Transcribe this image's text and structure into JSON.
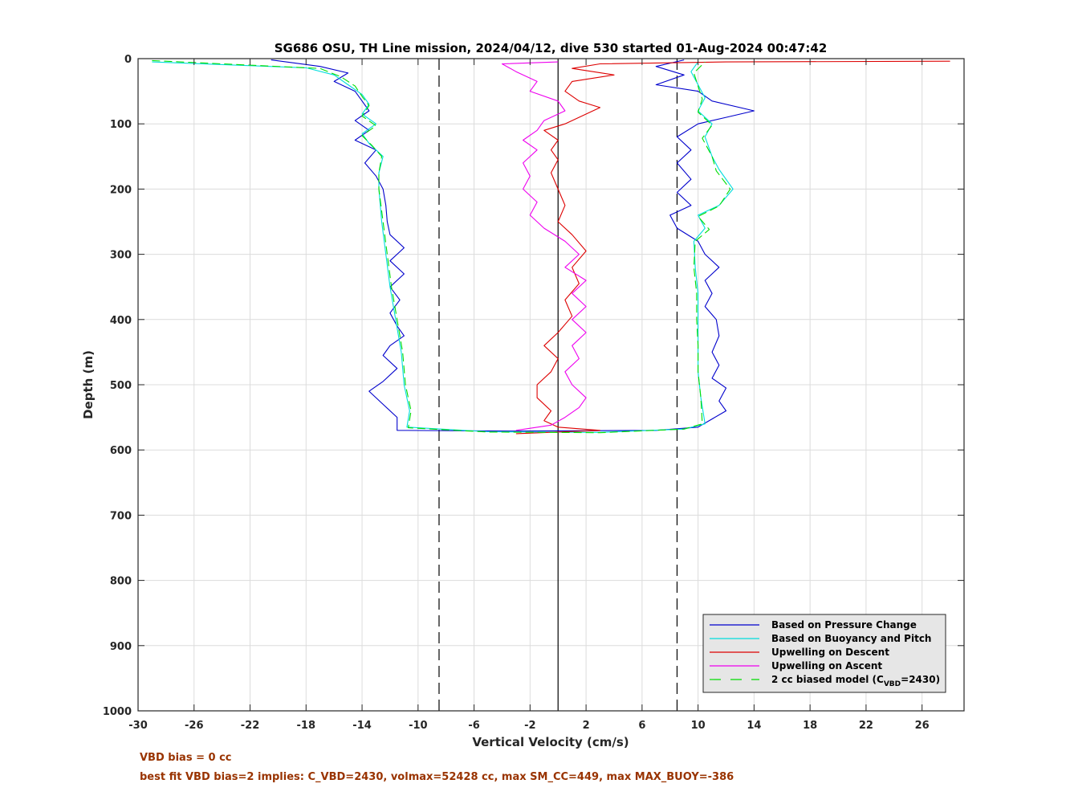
{
  "chart_data": {
    "type": "line",
    "title": "SG686 OSU, TH Line mission, 2024/04/12, dive 530 started 01-Aug-2024 00:47:42",
    "xlabel": "Vertical Velocity (cm/s)",
    "ylabel": "Depth (m)",
    "xlim": [
      -30,
      29
    ],
    "ylim": [
      1000,
      0
    ],
    "y_reversed": true,
    "grid": true,
    "legend_position": "bottom-right",
    "xticks": [
      -30,
      -26,
      -22,
      -18,
      -14,
      -10,
      -6,
      -2,
      2,
      6,
      10,
      14,
      18,
      22,
      26
    ],
    "yticks": [
      0,
      100,
      200,
      300,
      400,
      500,
      600,
      700,
      800,
      900,
      1000
    ],
    "vlines": [
      {
        "x": -8.5,
        "style": "dashed",
        "color": "#000000"
      },
      {
        "x": 0,
        "style": "solid",
        "color": "#000000"
      },
      {
        "x": 8.5,
        "style": "dashed",
        "color": "#000000"
      }
    ],
    "series": [
      {
        "name": "Based on Pressure Change",
        "color": "#0000cc",
        "style": "solid",
        "points": [
          [
            -20.5,
            2
          ],
          [
            -17,
            12
          ],
          [
            -15,
            22
          ],
          [
            -16,
            35
          ],
          [
            -14.5,
            50
          ],
          [
            -14,
            65
          ],
          [
            -13.5,
            80
          ],
          [
            -14.5,
            95
          ],
          [
            -13.5,
            110
          ],
          [
            -14.5,
            125
          ],
          [
            -13,
            140
          ],
          [
            -13.8,
            160
          ],
          [
            -13,
            180
          ],
          [
            -12.5,
            200
          ],
          [
            -12.3,
            225
          ],
          [
            -12.2,
            250
          ],
          [
            -12,
            270
          ],
          [
            -11,
            290
          ],
          [
            -12,
            310
          ],
          [
            -11,
            330
          ],
          [
            -12,
            350
          ],
          [
            -11.3,
            370
          ],
          [
            -12,
            390
          ],
          [
            -11.5,
            410
          ],
          [
            -11,
            425
          ],
          [
            -12,
            440
          ],
          [
            -12.5,
            455
          ],
          [
            -11.5,
            475
          ],
          [
            -12.5,
            495
          ],
          [
            -13.5,
            510
          ],
          [
            -12.5,
            530
          ],
          [
            -11.5,
            550
          ],
          [
            -11.5,
            570
          ],
          [
            -3,
            571
          ],
          [
            7,
            570
          ],
          [
            10,
            565
          ],
          [
            12,
            540
          ],
          [
            11.5,
            525
          ],
          [
            12,
            505
          ],
          [
            11,
            490
          ],
          [
            11.5,
            470
          ],
          [
            11,
            450
          ],
          [
            11.5,
            425
          ],
          [
            11.3,
            400
          ],
          [
            10.5,
            380
          ],
          [
            11,
            360
          ],
          [
            10.5,
            340
          ],
          [
            11.5,
            320
          ],
          [
            10.5,
            300
          ],
          [
            10,
            280
          ],
          [
            8.5,
            260
          ],
          [
            8,
            240
          ],
          [
            9.5,
            225
          ],
          [
            8.5,
            205
          ],
          [
            9.5,
            185
          ],
          [
            8.5,
            160
          ],
          [
            9.5,
            140
          ],
          [
            8.5,
            120
          ],
          [
            10,
            100
          ],
          [
            12,
            90
          ],
          [
            14,
            80
          ],
          [
            11,
            65
          ],
          [
            10,
            50
          ],
          [
            7,
            40
          ],
          [
            9,
            25
          ],
          [
            7,
            12
          ],
          [
            9,
            2
          ]
        ]
      },
      {
        "name": "Based on Buoyancy and Pitch",
        "color": "#00dddd",
        "style": "solid",
        "points": [
          [
            -29,
            5
          ],
          [
            -18,
            14
          ],
          [
            -16,
            25
          ],
          [
            -15,
            40
          ],
          [
            -14,
            55
          ],
          [
            -13.5,
            70
          ],
          [
            -14,
            85
          ],
          [
            -13,
            100
          ],
          [
            -14,
            115
          ],
          [
            -13.5,
            130
          ],
          [
            -12.5,
            150
          ],
          [
            -12.8,
            175
          ],
          [
            -12.8,
            200
          ],
          [
            -12.6,
            250
          ],
          [
            -12.3,
            300
          ],
          [
            -12,
            350
          ],
          [
            -11.6,
            400
          ],
          [
            -11.2,
            450
          ],
          [
            -11,
            500
          ],
          [
            -10.6,
            540
          ],
          [
            -10.8,
            565
          ],
          [
            -5,
            572
          ],
          [
            3,
            573
          ],
          [
            9,
            568
          ],
          [
            10.5,
            560
          ],
          [
            10.2,
            520
          ],
          [
            10,
            480
          ],
          [
            10,
            440
          ],
          [
            10,
            400
          ],
          [
            10,
            360
          ],
          [
            9.8,
            320
          ],
          [
            9.7,
            280
          ],
          [
            10.5,
            260
          ],
          [
            10,
            240
          ],
          [
            11.5,
            225
          ],
          [
            12.5,
            200
          ],
          [
            11.5,
            170
          ],
          [
            11,
            150
          ],
          [
            10.5,
            120
          ],
          [
            11,
            100
          ],
          [
            10,
            80
          ],
          [
            10.5,
            60
          ],
          [
            10,
            40
          ],
          [
            9.5,
            20
          ],
          [
            10,
            5
          ]
        ]
      },
      {
        "name": "Upwelling on Descent",
        "color": "#dd0000",
        "style": "solid",
        "points": [
          [
            28,
            4
          ],
          [
            12,
            5
          ],
          [
            3,
            8
          ],
          [
            1,
            15
          ],
          [
            4,
            25
          ],
          [
            1,
            35
          ],
          [
            0.5,
            50
          ],
          [
            1.5,
            65
          ],
          [
            3,
            75
          ],
          [
            2,
            85
          ],
          [
            0.5,
            100
          ],
          [
            -1,
            110
          ],
          [
            0,
            125
          ],
          [
            -0.5,
            140
          ],
          [
            0,
            155
          ],
          [
            -0.5,
            175
          ],
          [
            0,
            200
          ],
          [
            0.5,
            225
          ],
          [
            0,
            250
          ],
          [
            1,
            270
          ],
          [
            2,
            295
          ],
          [
            1,
            320
          ],
          [
            1.5,
            345
          ],
          [
            0.5,
            370
          ],
          [
            1,
            395
          ],
          [
            0,
            420
          ],
          [
            -1,
            440
          ],
          [
            0,
            460
          ],
          [
            -0.5,
            480
          ],
          [
            -1.5,
            500
          ],
          [
            -1.5,
            520
          ],
          [
            -0.5,
            540
          ],
          [
            -1,
            555
          ],
          [
            0,
            565
          ],
          [
            3,
            570
          ],
          [
            -3,
            575
          ]
        ]
      },
      {
        "name": "Upwelling on Ascent",
        "color": "#ee00ee",
        "style": "solid",
        "points": [
          [
            -3,
            570
          ],
          [
            -0.5,
            562
          ],
          [
            0.5,
            550
          ],
          [
            1.5,
            535
          ],
          [
            2,
            520
          ],
          [
            1,
            500
          ],
          [
            0.5,
            480
          ],
          [
            1.5,
            460
          ],
          [
            1,
            440
          ],
          [
            2,
            420
          ],
          [
            1,
            400
          ],
          [
            2,
            380
          ],
          [
            1,
            360
          ],
          [
            2,
            340
          ],
          [
            0.5,
            320
          ],
          [
            1.5,
            300
          ],
          [
            0.5,
            280
          ],
          [
            -1,
            260
          ],
          [
            -2,
            240
          ],
          [
            -1.5,
            220
          ],
          [
            -2.5,
            200
          ],
          [
            -2,
            180
          ],
          [
            -2.5,
            160
          ],
          [
            -1.5,
            140
          ],
          [
            -2.5,
            125
          ],
          [
            -1.5,
            110
          ],
          [
            -1,
            95
          ],
          [
            0.5,
            80
          ],
          [
            0,
            65
          ],
          [
            -2,
            50
          ],
          [
            -1.5,
            35
          ],
          [
            -3,
            20
          ],
          [
            -4,
            8
          ],
          [
            0,
            5
          ]
        ]
      },
      {
        "name": "2 cc biased model (C_VBD=2430)",
        "legend_label": "2 cc biased model (C",
        "legend_subscript": "VBD",
        "legend_suffix": "=2430)",
        "color": "#00dd00",
        "style": "dashed",
        "points": [
          [
            -29,
            3
          ],
          [
            -17,
            15
          ],
          [
            -15.5,
            28
          ],
          [
            -14.5,
            42
          ],
          [
            -14,
            58
          ],
          [
            -13.5,
            72
          ],
          [
            -14,
            88
          ],
          [
            -13,
            103
          ],
          [
            -14,
            118
          ],
          [
            -13.3,
            133
          ],
          [
            -12.6,
            150
          ],
          [
            -12.8,
            175
          ],
          [
            -12.8,
            200
          ],
          [
            -12.5,
            250
          ],
          [
            -12.2,
            300
          ],
          [
            -11.9,
            350
          ],
          [
            -11.5,
            400
          ],
          [
            -11.1,
            450
          ],
          [
            -10.9,
            500
          ],
          [
            -10.5,
            540
          ],
          [
            -10.7,
            566
          ],
          [
            -5,
            572.5
          ],
          [
            3,
            573.5
          ],
          [
            9,
            568
          ],
          [
            10.3,
            560
          ],
          [
            10.2,
            520
          ],
          [
            10,
            480
          ],
          [
            10,
            440
          ],
          [
            9.9,
            400
          ],
          [
            9.9,
            360
          ],
          [
            9.7,
            320
          ],
          [
            9.8,
            280
          ],
          [
            10.8,
            262
          ],
          [
            10,
            242
          ],
          [
            11.5,
            226
          ],
          [
            12.3,
            200
          ],
          [
            11.3,
            172
          ],
          [
            11,
            150
          ],
          [
            10.3,
            122
          ],
          [
            11,
            102
          ],
          [
            10,
            82
          ],
          [
            10.3,
            62
          ],
          [
            10,
            42
          ],
          [
            9.7,
            22
          ],
          [
            10.5,
            5
          ]
        ]
      }
    ]
  },
  "footnotes": {
    "line1": "VBD bias = 0 cc",
    "line2": "best fit VBD bias=2 implies: C_VBD=2430, volmax=52428 cc, max SM_CC=449, max MAX_BUOY=-386"
  }
}
